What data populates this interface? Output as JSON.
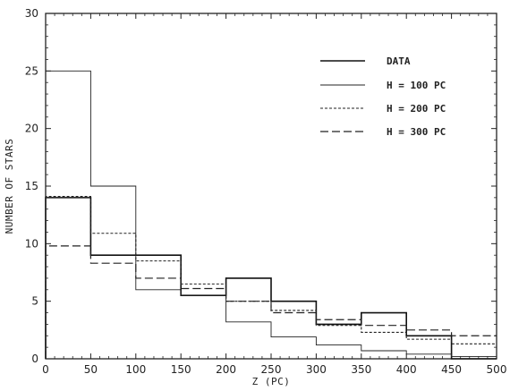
{
  "chart_data": {
    "type": "line",
    "step": true,
    "xlabel": "Z (PC)",
    "ylabel": "NUMBER OF STARS",
    "xlim": [
      0,
      500
    ],
    "ylim": [
      0,
      30
    ],
    "x_ticks": [
      0,
      50,
      100,
      150,
      200,
      250,
      300,
      350,
      400,
      450,
      500
    ],
    "y_ticks": [
      0,
      5,
      10,
      15,
      20,
      25,
      30
    ],
    "x_tick_labels": [
      "0",
      "50",
      "100",
      "150",
      "200",
      "250",
      "300",
      "350",
      "400",
      "450",
      "500"
    ],
    "y_tick_labels": [
      "0",
      "5",
      "10",
      "15",
      "20",
      "25",
      "30"
    ],
    "bin_edges": [
      0,
      50,
      100,
      150,
      200,
      250,
      300,
      350,
      400,
      450,
      500
    ],
    "grid": false,
    "legend_position": "top-right",
    "series": [
      {
        "name": "DATA",
        "style": "solid-thick",
        "values": [
          14,
          9,
          9,
          5.5,
          7,
          5,
          3,
          4,
          2,
          0
        ]
      },
      {
        "name": "H = 100 PC",
        "style": "solid-thin",
        "values": [
          25,
          15,
          6,
          5.5,
          3.2,
          1.9,
          1.2,
          0.7,
          0.4,
          0.2
        ]
      },
      {
        "name": "H = 200 PC",
        "style": "dotted",
        "values": [
          14.1,
          10.9,
          8.5,
          6.5,
          5,
          4.2,
          2.9,
          2.3,
          1.7,
          1.3
        ]
      },
      {
        "name": "H = 300 PC",
        "style": "dashed",
        "values": [
          9.8,
          8.3,
          7,
          6.1,
          5,
          4,
          3.4,
          2.9,
          2.5,
          2
        ]
      }
    ]
  }
}
